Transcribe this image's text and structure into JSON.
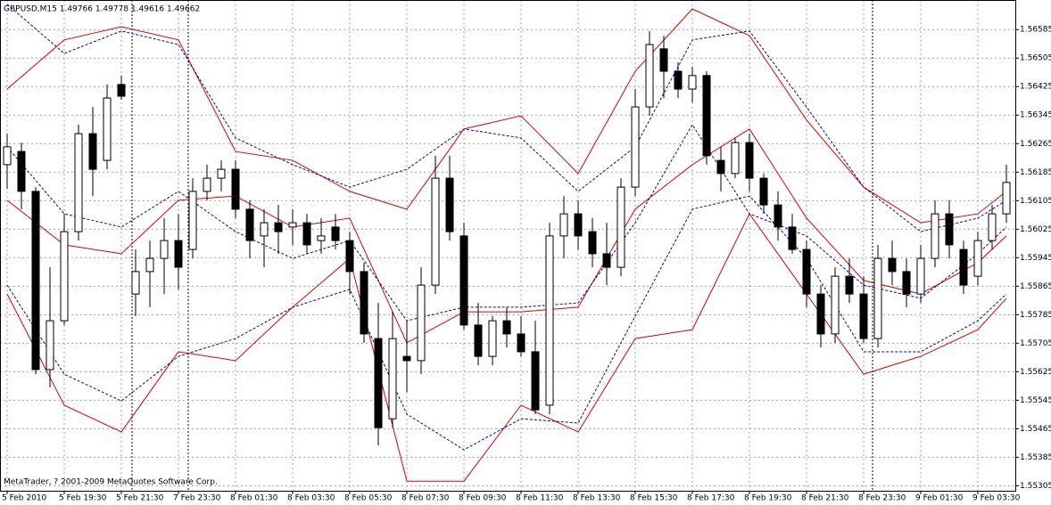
{
  "chart_data": {
    "type": "candlestick",
    "title": "GBPUSD,M15  1.49766 1.49778 1.49616 1.49662",
    "annotation": "MetaTrader, ? 2001-2009 MetaQuotes Software Corp.",
    "categories": [
      "5 Feb 2010",
      null,
      null,
      null,
      "5 Feb 19:30",
      null,
      null,
      null,
      "5 Feb 21:30",
      null,
      null,
      null,
      "7 Feb 23:30",
      null,
      null,
      null,
      "8 Feb 01:30",
      null,
      null,
      null,
      "8 Feb 03:30",
      null,
      null,
      null,
      "8 Feb 05:30",
      null,
      null,
      null,
      "8 Feb 07:30",
      null,
      null,
      null,
      "8 Feb 09:30",
      null,
      null,
      null,
      "8 Feb 11:30",
      null,
      null,
      null,
      "8 Feb 13:30",
      null,
      null,
      null,
      "8 Feb 15:30",
      null,
      null,
      null,
      "8 Feb 17:30",
      null,
      null,
      null,
      "8 Feb 19:30",
      null,
      null,
      null,
      "8 Feb 21:30",
      null,
      null,
      null,
      "8 Feb 23:30",
      null,
      null,
      null,
      "9 Feb 01:30",
      null,
      null,
      null,
      "9 Feb 03:30",
      null,
      null
    ],
    "open": [
      1.56206,
      1.56243,
      1.56131,
      1.55631,
      1.55768,
      1.56018,
      1.56293,
      1.56218,
      1.56431,
      1.55843,
      1.55906,
      1.55943,
      1.55993,
      1.55968,
      1.56131,
      1.56168,
      1.56193,
      1.56081,
      1.56006,
      1.56043,
      1.56031,
      1.56043,
      1.55993,
      1.56031,
      1.55993,
      1.55906,
      1.55718,
      1.55493,
      1.55668,
      1.55656,
      1.55868,
      1.56168,
      1.56006,
      1.55756,
      1.55668,
      1.55768,
      1.55731,
      1.55681,
      1.55531,
      1.56006,
      1.56068,
      1.56018,
      1.55956,
      1.55918,
      1.56143,
      1.56368,
      1.56531,
      1.56468,
      1.56418,
      1.56456,
      1.56218,
      1.56181,
      1.56268,
      1.56168,
      1.56093,
      1.56031,
      1.55968,
      1.55843,
      1.55731,
      1.55893,
      1.55843,
      1.55718,
      1.55943,
      1.55906,
      1.55843,
      1.55943,
      1.56068,
      1.55968,
      1.55893,
      1.55993,
      1.56068
    ],
    "high": [
      1.56293,
      1.56268,
      1.56143,
      1.55918,
      1.56068,
      1.56318,
      1.56368,
      1.56431,
      1.56456,
      1.55968,
      1.55993,
      1.56056,
      1.56068,
      1.56168,
      1.56206,
      1.56218,
      1.56218,
      1.56106,
      1.56081,
      1.56093,
      1.56081,
      1.56068,
      1.56056,
      1.56068,
      1.56018,
      1.55931,
      1.55818,
      1.55793,
      1.55768,
      1.55918,
      1.56231,
      1.56231,
      1.56043,
      1.55818,
      1.55781,
      1.55806,
      1.55781,
      1.55768,
      1.56043,
      1.56118,
      1.56106,
      1.56056,
      1.56043,
      1.56168,
      1.56418,
      1.56581,
      1.56568,
      1.56493,
      1.56481,
      1.56468,
      1.56256,
      1.56281,
      1.56293,
      1.56181,
      1.56131,
      1.56068,
      1.55993,
      1.55868,
      1.55918,
      1.55943,
      1.55893,
      1.55981,
      1.55993,
      1.55943,
      1.55981,
      1.56106,
      1.56106,
      1.55993,
      1.56018,
      1.56093,
      1.56206
    ],
    "low": [
      1.56138,
      1.56081,
      1.55618,
      1.55581,
      1.55756,
      1.55993,
      1.56118,
      1.56193,
      1.56388,
      1.55781,
      1.55806,
      1.55843,
      1.55856,
      1.55943,
      1.56106,
      1.56131,
      1.56056,
      1.55943,
      1.55918,
      1.55956,
      1.55981,
      1.55956,
      1.55956,
      1.55968,
      1.55843,
      1.55706,
      1.55418,
      1.55468,
      1.55568,
      1.55618,
      1.55843,
      1.55993,
      1.55743,
      1.55643,
      1.55643,
      1.55693,
      1.55668,
      1.55506,
      1.55506,
      1.55943,
      1.55968,
      1.55918,
      1.55868,
      1.55893,
      1.56118,
      1.56343,
      1.56393,
      1.56393,
      1.56381,
      1.56206,
      1.56131,
      1.56168,
      1.56131,
      1.56068,
      1.55993,
      1.55956,
      1.55806,
      1.55693,
      1.55706,
      1.55818,
      1.55706,
      1.55693,
      1.55868,
      1.55806,
      1.55818,
      1.55918,
      1.55943,
      1.55843,
      1.55868,
      1.55968,
      1.56043
    ],
    "close": [
      1.56256,
      1.56131,
      1.55631,
      1.55768,
      1.56018,
      1.56293,
      1.56193,
      1.56393,
      1.56398,
      1.55906,
      1.55943,
      1.55993,
      1.55918,
      1.56131,
      1.56168,
      1.56193,
      1.56081,
      1.55993,
      1.56043,
      1.56018,
      1.56043,
      1.55981,
      1.56006,
      1.55993,
      1.55906,
      1.55731,
      1.55468,
      1.55718,
      1.55656,
      1.55868,
      1.56168,
      1.56018,
      1.55756,
      1.55668,
      1.55768,
      1.55731,
      1.55681,
      1.55518,
      1.56006,
      1.56068,
      1.56006,
      1.55956,
      1.55918,
      1.56143,
      1.56368,
      1.56543,
      1.56468,
      1.56418,
      1.56456,
      1.56231,
      1.56181,
      1.56268,
      1.56168,
      1.56093,
      1.56031,
      1.55968,
      1.55843,
      1.55731,
      1.55893,
      1.55843,
      1.55718,
      1.55943,
      1.55906,
      1.55843,
      1.55943,
      1.56068,
      1.55981,
      1.55868,
      1.55993,
      1.56068,
      1.56156
    ],
    "up_color": "#ffffff",
    "down_color": "#000000",
    "overlays": [
      {
        "color": "#e00000",
        "style": "solid",
        "x": [
          0,
          4,
          8,
          12,
          16,
          20,
          24,
          28,
          32,
          36,
          40,
          44,
          48,
          52,
          56,
          60,
          64,
          68,
          70
        ],
        "values": [
          1.56418,
          1.56556,
          1.56593,
          1.56556,
          1.56243,
          1.56218,
          1.56131,
          1.56081,
          1.56306,
          1.56343,
          1.56181,
          1.56468,
          1.56643,
          1.56568,
          1.56331,
          1.56143,
          1.56043,
          1.56068,
          1.56131
        ]
      },
      {
        "color": "#e00000",
        "style": "solid",
        "x": [
          0,
          4,
          8,
          12,
          16,
          20,
          24,
          28,
          32,
          36,
          40,
          44,
          48,
          52,
          56,
          60,
          64,
          68,
          70
        ],
        "values": [
          1.56106,
          1.55981,
          1.55956,
          1.56106,
          1.56118,
          1.56031,
          1.56056,
          1.55706,
          1.55793,
          1.55793,
          1.55806,
          1.56081,
          1.56206,
          1.56306,
          1.56056,
          1.55881,
          1.55843,
          1.55931,
          1.56006
        ]
      },
      {
        "color": "#e00000",
        "style": "solid",
        "x": [
          0,
          4,
          8,
          12,
          16,
          20,
          24,
          28,
          32,
          36,
          40,
          44,
          48,
          52,
          56,
          60,
          64,
          68,
          70
        ],
        "values": [
          1.55843,
          1.55531,
          1.55456,
          1.55681,
          1.55656,
          1.55806,
          1.55943,
          1.55318,
          1.55318,
          1.55531,
          1.55456,
          1.55718,
          1.55743,
          1.56068,
          1.55843,
          1.55618,
          1.55668,
          1.55743,
          1.55831
        ]
      },
      {
        "color": "#0000cc",
        "style": "dashed",
        "x": [
          0,
          4,
          8,
          12,
          16,
          20,
          24,
          28,
          32,
          36,
          40,
          44,
          48,
          52,
          56,
          60,
          64,
          68,
          70
        ],
        "values": [
          1.56656,
          1.56518,
          1.56581,
          1.56543,
          1.56281,
          1.56206,
          1.56143,
          1.56193,
          1.56306,
          1.56281,
          1.56131,
          1.56256,
          1.56556,
          1.56581,
          1.56368,
          1.56143,
          1.56018,
          1.56056,
          1.56106
        ]
      },
      {
        "color": "#0000cc",
        "style": "dashed",
        "x": [
          0,
          4,
          8,
          12,
          16,
          20,
          24,
          28,
          32,
          36,
          40,
          44,
          48,
          52,
          56,
          60,
          64,
          68,
          70
        ],
        "values": [
          1.56256,
          1.56068,
          1.56031,
          1.56131,
          1.56018,
          1.55943,
          1.55993,
          1.55768,
          1.55806,
          1.55806,
          1.55818,
          1.56043,
          1.56318,
          1.56068,
          1.56006,
          1.55868,
          1.55831,
          1.55956,
          1.56031
        ]
      },
      {
        "color": "#0000cc",
        "style": "dashed",
        "x": [
          0,
          4,
          8,
          12,
          16,
          20,
          24,
          28,
          32,
          36,
          40,
          44,
          48,
          52,
          56,
          60,
          64,
          68,
          70
        ],
        "values": [
          1.55868,
          1.55618,
          1.55543,
          1.55668,
          1.55718,
          1.55806,
          1.55856,
          1.55506,
          1.55406,
          1.55493,
          1.55481,
          1.55781,
          1.56081,
          1.56118,
          1.55943,
          1.55681,
          1.55681,
          1.55768,
          1.55843
        ]
      }
    ],
    "ylim": [
      1.55291,
      1.56668
    ],
    "yticks": [
      1.56585,
      1.56505,
      1.56425,
      1.56345,
      1.56265,
      1.56185,
      1.56105,
      1.56025,
      1.55945,
      1.55865,
      1.55785,
      1.55705,
      1.55625,
      1.55545,
      1.55465,
      1.55385,
      1.55305
    ],
    "grid": true
  }
}
